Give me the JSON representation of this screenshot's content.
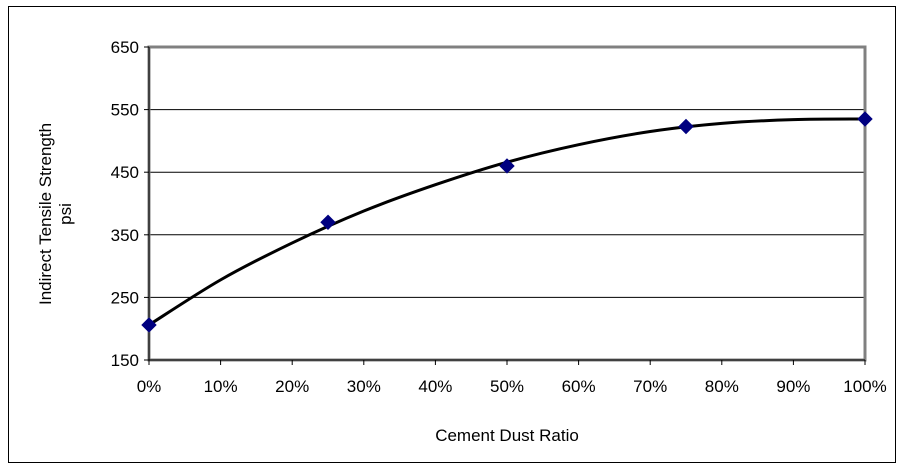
{
  "chart_data": {
    "type": "scatter",
    "title": "",
    "xlabel": "Cement Dust Ratio",
    "ylabel_lines": [
      "Indirect Tensile Strength",
      "psi"
    ],
    "x_tick_labels": [
      "0%",
      "10%",
      "20%",
      "30%",
      "40%",
      "50%",
      "60%",
      "70%",
      "80%",
      "90%",
      "100%"
    ],
    "y_tick_labels": [
      "150",
      "250",
      "350",
      "450",
      "550",
      "650"
    ],
    "xlim": [
      0,
      100
    ],
    "ylim": [
      150,
      650
    ],
    "x_tick_values": [
      0,
      10,
      20,
      30,
      40,
      50,
      60,
      70,
      80,
      90,
      100
    ],
    "y_tick_values": [
      150,
      250,
      350,
      450,
      550,
      650
    ],
    "grid": "horizontal",
    "series": [
      {
        "points": [
          {
            "x": 0,
            "y": 206
          },
          {
            "x": 25,
            "y": 370
          },
          {
            "x": 50,
            "y": 460
          },
          {
            "x": 75,
            "y": 523
          },
          {
            "x": 100,
            "y": 535
          }
        ],
        "marker": "diamond",
        "color": "#000080"
      }
    ],
    "trendline": {
      "type": "polynomial",
      "color": "#000000",
      "samples": [
        {
          "x": 0,
          "y": 206
        },
        {
          "x": 10,
          "y": 278
        },
        {
          "x": 20,
          "y": 337
        },
        {
          "x": 30,
          "y": 388
        },
        {
          "x": 40,
          "y": 430
        },
        {
          "x": 50,
          "y": 466
        },
        {
          "x": 60,
          "y": 494
        },
        {
          "x": 70,
          "y": 515
        },
        {
          "x": 80,
          "y": 528
        },
        {
          "x": 90,
          "y": 534
        },
        {
          "x": 100,
          "y": 535
        }
      ]
    },
    "colors": {
      "plot_border": "#808080",
      "gridline": "#000000",
      "marker": "#000080",
      "trendline": "#000000"
    }
  }
}
